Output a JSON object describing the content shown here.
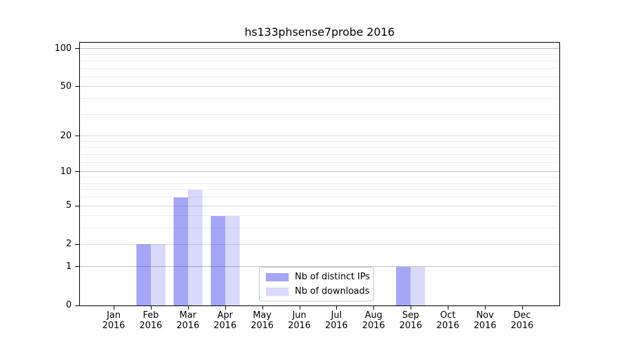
{
  "chart_data": {
    "type": "bar",
    "title": "hs133phsense7probe 2016",
    "x_categories": [
      {
        "month": "Jan",
        "year": "2016"
      },
      {
        "month": "Feb",
        "year": "2016"
      },
      {
        "month": "Mar",
        "year": "2016"
      },
      {
        "month": "Apr",
        "year": "2016"
      },
      {
        "month": "May",
        "year": "2016"
      },
      {
        "month": "Jun",
        "year": "2016"
      },
      {
        "month": "Jul",
        "year": "2016"
      },
      {
        "month": "Aug",
        "year": "2016"
      },
      {
        "month": "Sep",
        "year": "2016"
      },
      {
        "month": "Oct",
        "year": "2016"
      },
      {
        "month": "Nov",
        "year": "2016"
      },
      {
        "month": "Dec",
        "year": "2016"
      }
    ],
    "series": [
      {
        "name": "Nb of distinct IPs",
        "color": "rgba(0,0,238,0.35)",
        "values": [
          0,
          2,
          6,
          4,
          0,
          0,
          0,
          0,
          1,
          0,
          0,
          0
        ]
      },
      {
        "name": "Nb of downloads",
        "color": "rgba(0,0,238,0.15)",
        "values": [
          0,
          2,
          7,
          4,
          0,
          0,
          0,
          0,
          1,
          0,
          0,
          0
        ]
      }
    ],
    "y_axis": {
      "scale": "log10(1+y)",
      "tick_labels": [
        0,
        1,
        2,
        5,
        10,
        20,
        50,
        100
      ],
      "decade_gridlines": [
        1,
        10,
        100
      ],
      "mid_gridlines": [
        2,
        5,
        20,
        50
      ],
      "minor_gridlines": [
        3,
        4,
        6,
        7,
        8,
        9,
        12,
        14,
        16,
        18,
        30,
        40,
        60,
        70,
        80,
        90
      ],
      "ylim": [
        0,
        112
      ]
    },
    "grid": {
      "decade_color": "#bdbdbd",
      "mid_color": "#d9d9d9",
      "minor_color": "#ececec",
      "orientation": "horizontal-only"
    },
    "legend": {
      "position": "lower-center-of-plot",
      "entries": [
        "Nb of distinct IPs",
        "Nb of downloads"
      ]
    }
  }
}
